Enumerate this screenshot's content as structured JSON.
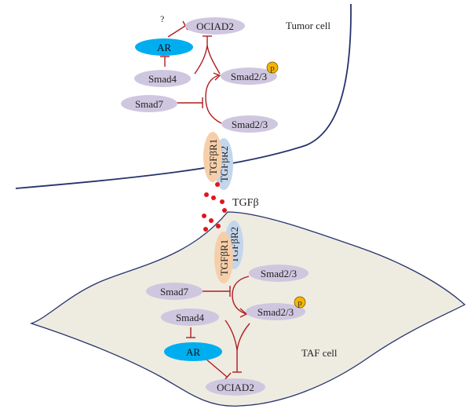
{
  "labels": {
    "tumor_cell": "Tumor cell",
    "taf_cell": "TAF cell",
    "tgfb": "TGFβ",
    "question": "?",
    "phospho": "p"
  },
  "tumor": {
    "ociad2": "OCIAD2",
    "ar": "AR",
    "smad4": "Smad4",
    "smad7": "Smad7",
    "smad23_p": "Smad2/3",
    "smad23": "Smad2/3",
    "tgfbr1": "TGFβR1",
    "tgfbr2": "TGFβR2"
  },
  "taf": {
    "tgfbr1": "TGFβR1",
    "tgfbr2": "TGFβR2",
    "smad23": "Smad2/3",
    "smad7": "Smad7",
    "smad4": "Smad4",
    "smad23_p": "Smad2/3",
    "ar": "AR",
    "ociad2": "OCIAD2"
  },
  "colors": {
    "protein": "#cfc7df",
    "ar": "#00aeef",
    "tgfbr1": "#f6cfaa",
    "tgfbr2": "#c4d6eb",
    "inhibit_line": "#b01c20",
    "ligand": "#e0161e",
    "phospho": "#f5b400",
    "taf_fill": "#eeebe1",
    "outline": "#26336b"
  }
}
